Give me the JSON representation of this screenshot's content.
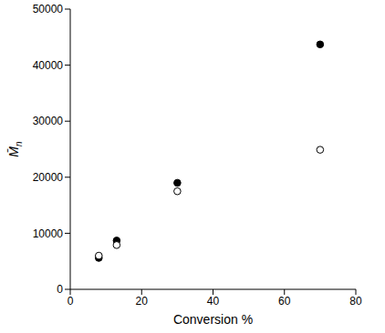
{
  "chart_data": {
    "type": "scatter",
    "xlabel": "Conversion %",
    "ylabel": "M̄n",
    "xlim": [
      0,
      80
    ],
    "xticks": [
      0,
      20,
      40,
      60,
      80
    ],
    "ylim": [
      0,
      50000
    ],
    "yticks": [
      0,
      10000,
      20000,
      30000,
      40000,
      50000
    ],
    "grid": false,
    "series": [
      {
        "color": "#000000",
        "marker": "filled",
        "x": [
          8,
          13,
          30,
          70
        ],
        "values": [
          5600,
          8700,
          19000,
          43700
        ]
      },
      {
        "color": "#000000",
        "marker": "open",
        "x": [
          8,
          13,
          30,
          70
        ],
        "values": [
          6000,
          7900,
          17500,
          24900
        ]
      }
    ]
  }
}
